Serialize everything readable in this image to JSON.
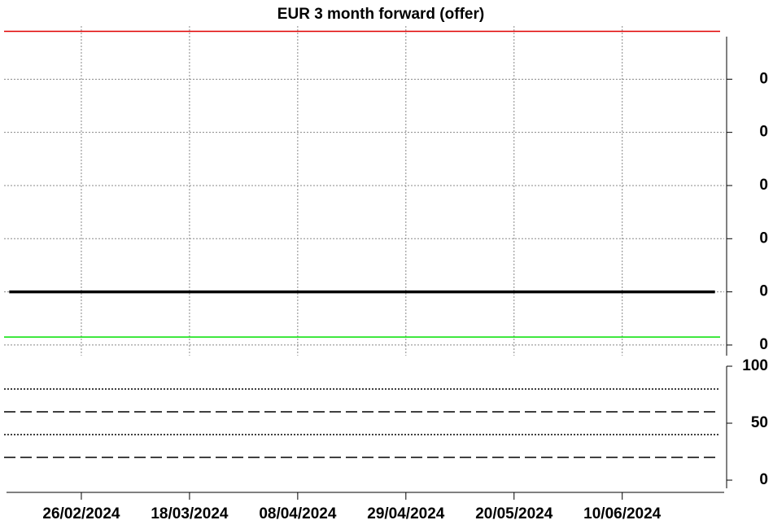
{
  "chart_data": [
    {
      "type": "line",
      "title": "EUR 3 month forward (offer)",
      "xlim": [
        "11/02/2024",
        "29/06/2024"
      ],
      "xticks": [
        "26/02/2024",
        "18/03/2024",
        "08/04/2024",
        "29/04/2024",
        "20/05/2024",
        "10/06/2024"
      ],
      "ylim": [
        -0.12,
        0.5
      ],
      "yticks": [
        {
          "value": 0.4,
          "label": "0"
        },
        {
          "value": 0.3,
          "label": "0"
        },
        {
          "value": 0.2,
          "label": "0"
        },
        {
          "value": 0.1,
          "label": "0"
        },
        {
          "value": 0,
          "label": "0"
        },
        {
          "value": -0.1,
          "label": "0"
        }
      ],
      "grid": true,
      "series": [
        {
          "color": "#000000",
          "x": [
            "12/02/2024",
            "28/06/2024"
          ],
          "values": [
            0,
            0
          ]
        }
      ],
      "hlines": [
        {
          "value": 0.49,
          "color": "#e00000",
          "style": "solid"
        },
        {
          "value": -0.085,
          "color": "#00e000",
          "style": "solid"
        }
      ]
    },
    {
      "type": "line",
      "ylim": [
        -10,
        100
      ],
      "yticks": [
        0,
        50,
        100
      ],
      "hlines": [
        {
          "value": 80,
          "color": "#000000",
          "style": "dotted"
        },
        {
          "value": 60,
          "color": "#000000",
          "style": "dashed"
        },
        {
          "value": 40,
          "color": "#000000",
          "style": "dotted"
        },
        {
          "value": 20,
          "color": "#000000",
          "style": "dashed"
        }
      ]
    }
  ]
}
